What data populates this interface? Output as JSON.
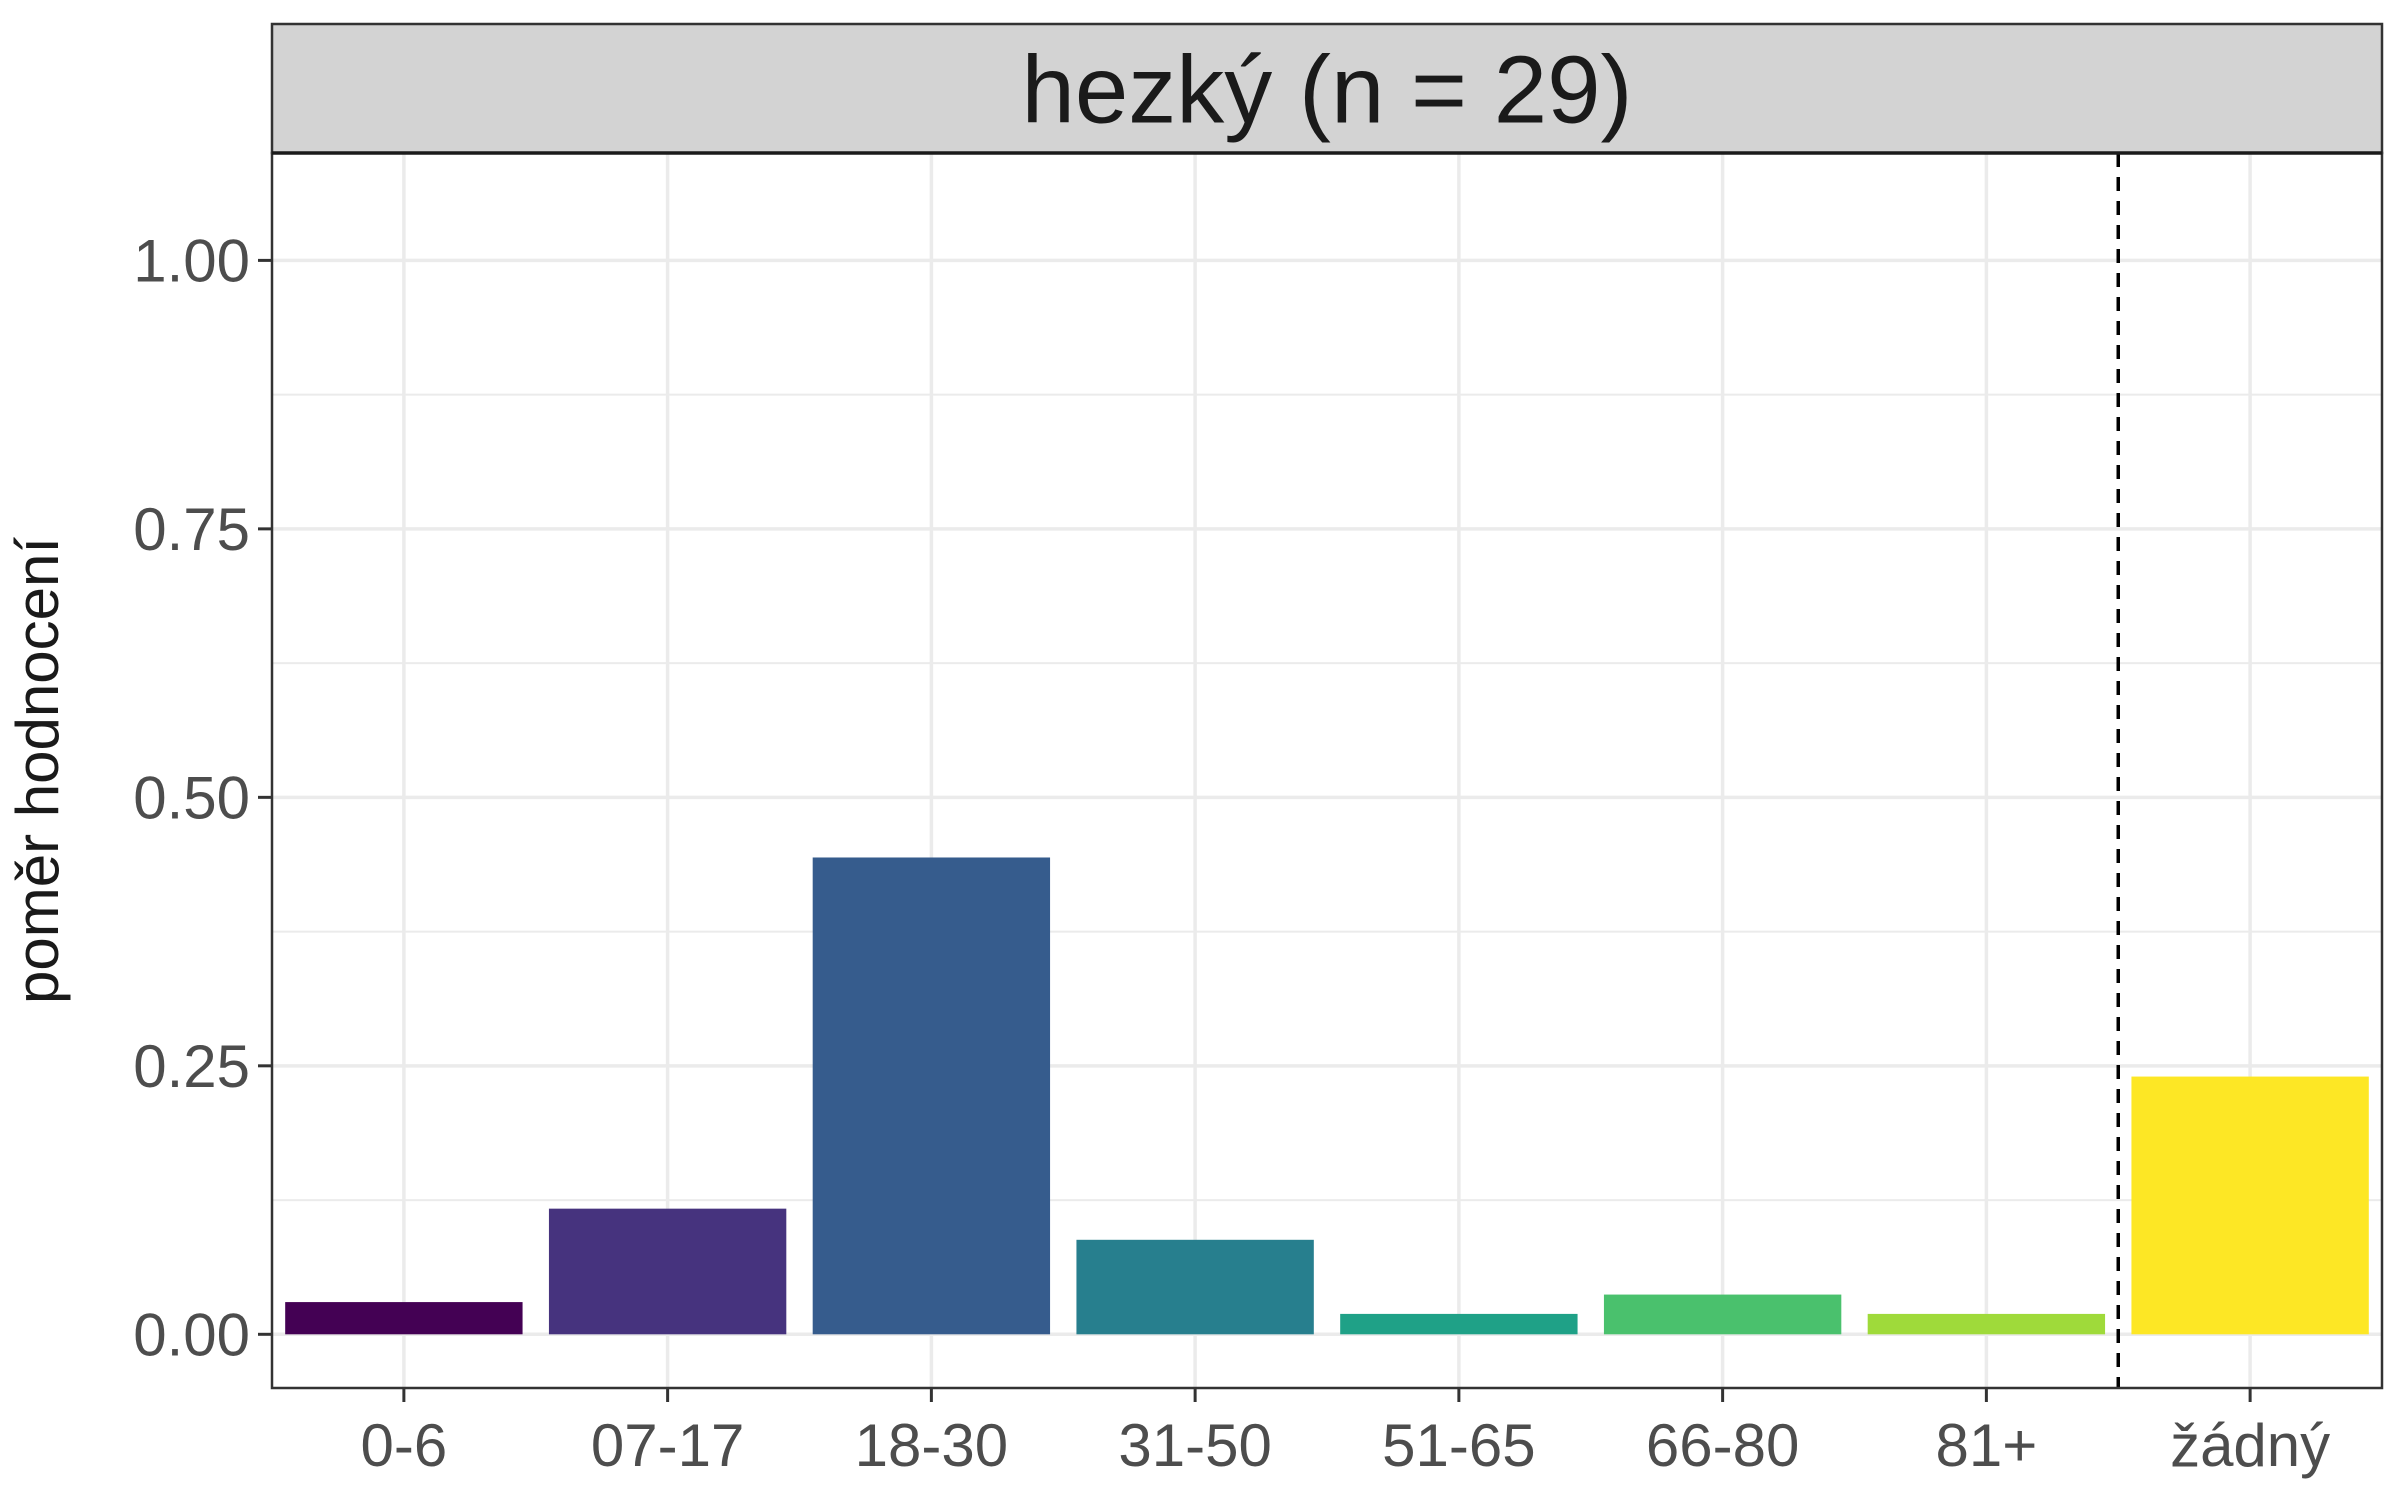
{
  "chart_data": {
    "type": "bar",
    "title": "hezký (n = 29)",
    "xlabel": "",
    "ylabel": "poměr hodnocení",
    "categories": [
      "0-6",
      "07-17",
      "18-30",
      "31-50",
      "51-65",
      "66-80",
      "81+",
      "žádný"
    ],
    "values": [
      0.03,
      0.117,
      0.444,
      0.088,
      0.019,
      0.037,
      0.019,
      0.24
    ],
    "colors": [
      "#440154",
      "#46337E",
      "#365C8D",
      "#277F8E",
      "#1FA187",
      "#4AC16D",
      "#9FDA3A",
      "#FDE725"
    ],
    "ylim": [
      -0.05,
      1.1
    ],
    "yticks": [
      0.0,
      0.25,
      0.5,
      0.75,
      1.0
    ],
    "ytick_labels": [
      "0.00",
      "0.25",
      "0.50",
      "0.75",
      "1.00"
    ],
    "reference_line": {
      "between": [
        "81+",
        "žádný"
      ],
      "style": "dashed",
      "color": "#000000"
    },
    "grid": true,
    "legend": "none",
    "strip_fill": "#d3d3d3"
  }
}
